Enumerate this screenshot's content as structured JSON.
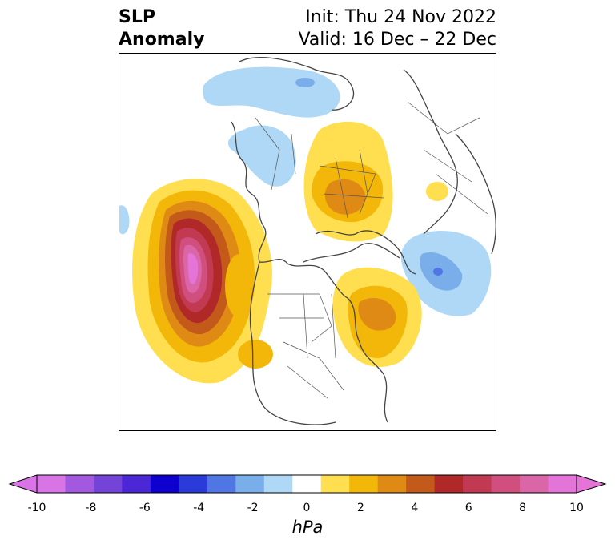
{
  "title": {
    "left_line1": "SLP",
    "left_line2": "Anomaly",
    "right_line1": "Init: Thu 24 Nov 2022",
    "right_line2": "Valid: 16 Dec – 22 Dec"
  },
  "colorbar": {
    "units": "hPa",
    "extend": "both",
    "ticks": [
      "-10",
      "-8",
      "-6",
      "-4",
      "-2",
      "0",
      "2",
      "4",
      "6",
      "8",
      "10"
    ],
    "levels": [
      -10,
      -9,
      -8,
      -7,
      -6,
      -5,
      -4,
      -3,
      -2,
      -1,
      1,
      2,
      3,
      4,
      5,
      6,
      7,
      8,
      9,
      10
    ],
    "colors": [
      "#d874e6",
      "#a259e0",
      "#7443d8",
      "#4b27d6",
      "#0e00cf",
      "#2a3bd9",
      "#5076e3",
      "#7aaeeb",
      "#aed8f5",
      "#ffffff",
      "#ffdf4f",
      "#f2b709",
      "#e08a16",
      "#c45a1a",
      "#b02828",
      "#c23a52",
      "#d04f7e",
      "#da66a8",
      "#e574d8"
    ],
    "under_color": "#d874e6",
    "over_color": "#e574d8"
  },
  "map": {
    "projection": "north-polar-stereographic",
    "features": [
      "coastlines",
      "country borders",
      "US states"
    ]
  }
}
